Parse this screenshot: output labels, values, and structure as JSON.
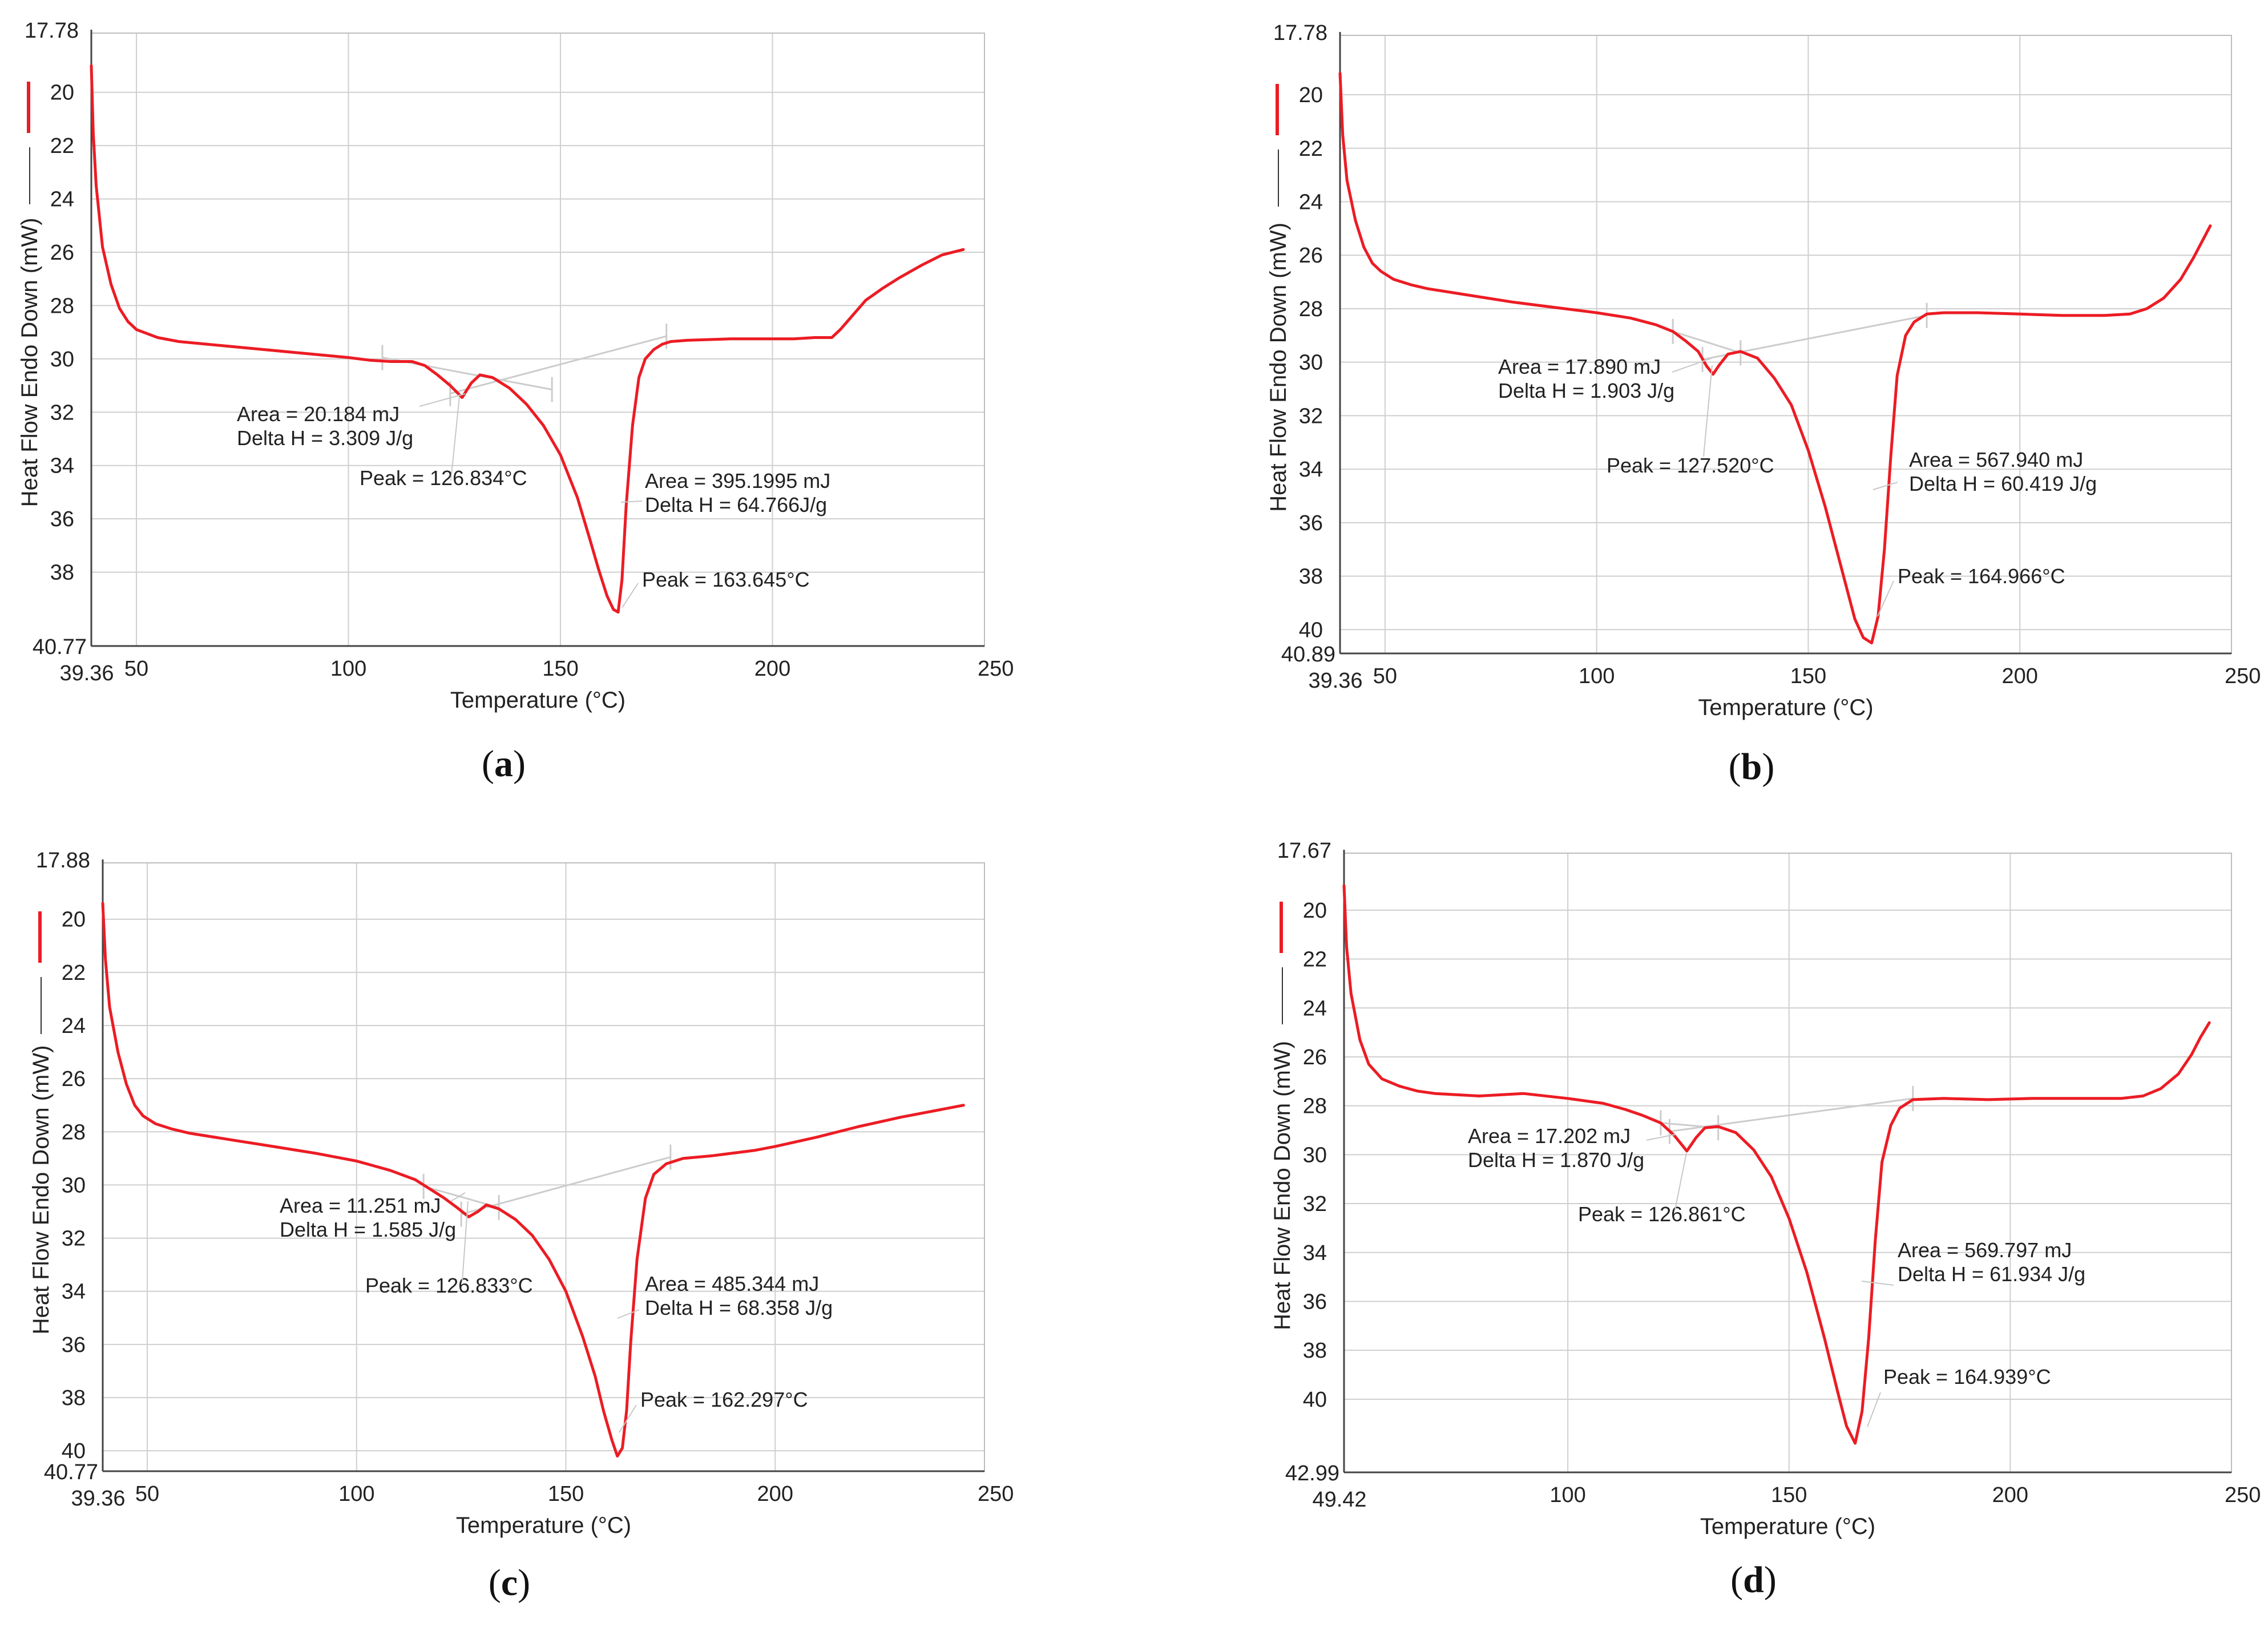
{
  "chart_data": [
    {
      "type": "line",
      "panel_label": "a",
      "xlabel": "Temperature (°C)",
      "ylabel": "Heat Flow Endo Down (mW)",
      "xlim": [
        39.36,
        250
      ],
      "ylim": [
        17.78,
        40.77
      ],
      "y_inverted": true,
      "x_start_label": "39.36",
      "y_top_label": "17.78",
      "y_bottom_label": "40.77",
      "xticks": [
        50,
        100,
        150,
        200,
        250
      ],
      "yticks": [
        20,
        22,
        24,
        26,
        28,
        30,
        32,
        34,
        36,
        38
      ],
      "series": [
        {
          "name": "Heat Flow",
          "color": "#ec1c24",
          "x": [
            39.36,
            39.8,
            40.5,
            42,
            44,
            46,
            48,
            50,
            55,
            60,
            70,
            80,
            90,
            100,
            105,
            110,
            115,
            118,
            121,
            124,
            126.8,
            129,
            131,
            134,
            138,
            142,
            146,
            150,
            154,
            157,
            159,
            161,
            162.5,
            163.6,
            164.5,
            165.5,
            167,
            168.5,
            170,
            172,
            174,
            176,
            180,
            190,
            200,
            205,
            210,
            214,
            216,
            219,
            222,
            226,
            230,
            235,
            240,
            245
          ],
          "y": [
            19.0,
            21.5,
            23.5,
            25.8,
            27.2,
            28.1,
            28.6,
            28.9,
            29.2,
            29.35,
            29.5,
            29.65,
            29.8,
            29.95,
            30.05,
            30.1,
            30.1,
            30.25,
            30.6,
            31.0,
            31.45,
            30.9,
            30.6,
            30.7,
            31.1,
            31.7,
            32.5,
            33.6,
            35.2,
            36.8,
            37.9,
            38.9,
            39.4,
            39.5,
            38.3,
            35.5,
            32.5,
            30.7,
            30.0,
            29.65,
            29.45,
            29.35,
            29.3,
            29.25,
            29.25,
            29.25,
            29.2,
            29.2,
            28.9,
            28.35,
            27.8,
            27.35,
            26.95,
            26.5,
            26.1,
            25.9
          ]
        }
      ],
      "annotations": [
        {
          "area": "Area =  20.184 mJ",
          "delta_h": "Delta H = 3.309 J/g",
          "peak": "Peak = 126.834°C"
        },
        {
          "area": "Area =  395.1995 mJ",
          "delta_h": "Delta H = 64.766J/g",
          "peak": "Peak = 163.645°C"
        }
      ],
      "baselines": [
        [
          [
            108,
            29.95
          ],
          [
            148,
            31.15
          ]
        ],
        [
          [
            124,
            31.3
          ],
          [
            175,
            29.15
          ]
        ]
      ]
    },
    {
      "type": "line",
      "panel_label": "b",
      "xlabel": "Temperature (°C)",
      "ylabel": "Heat Flow Endo Down (mW)",
      "xlim": [
        39.36,
        250
      ],
      "ylim": [
        17.78,
        40.89
      ],
      "y_inverted": true,
      "x_start_label": "39.36",
      "y_top_label": "17.78",
      "y_bottom_label": "40.89",
      "xticks": [
        50,
        100,
        150,
        200,
        250
      ],
      "yticks": [
        20,
        22,
        24,
        26,
        28,
        30,
        32,
        34,
        36,
        38,
        40
      ],
      "series": [
        {
          "name": "Heat Flow",
          "color": "#ec1c24",
          "x": [
            39.36,
            40,
            41,
            43,
            45,
            47,
            49,
            52,
            56,
            60,
            70,
            80,
            90,
            100,
            108,
            114,
            118,
            121,
            124,
            126,
            127.5,
            129,
            131,
            134,
            138,
            142,
            146,
            150,
            154,
            158,
            161,
            163,
            164.97,
            166.5,
            168,
            169.5,
            171,
            173,
            175,
            178,
            182,
            190,
            200,
            210,
            220,
            226,
            230,
            234,
            238,
            241,
            243,
            245
          ],
          "y": [
            19.2,
            21.5,
            23.2,
            24.7,
            25.7,
            26.3,
            26.6,
            26.9,
            27.1,
            27.25,
            27.5,
            27.75,
            27.95,
            28.15,
            28.35,
            28.6,
            28.85,
            29.2,
            29.6,
            30.15,
            30.45,
            30.1,
            29.7,
            29.6,
            29.85,
            30.6,
            31.6,
            33.3,
            35.4,
            37.8,
            39.6,
            40.3,
            40.5,
            39.5,
            37.0,
            33.5,
            30.5,
            29.0,
            28.5,
            28.2,
            28.15,
            28.15,
            28.2,
            28.25,
            28.25,
            28.2,
            28.0,
            27.6,
            26.9,
            26.1,
            25.5,
            24.9
          ]
        }
      ],
      "annotations": [
        {
          "area": "Area =  17.890 mJ",
          "delta_h": "Delta H = 1.903 J/g",
          "peak": "Peak = 127.520°C"
        },
        {
          "area": "Area =  567.940 mJ",
          "delta_h": "Delta H = 60.419 J/g",
          "peak": "Peak = 164.966°C"
        }
      ],
      "baselines": [
        [
          [
            118,
            28.85
          ],
          [
            134,
            29.65
          ]
        ],
        [
          [
            125,
            29.9
          ],
          [
            178,
            28.25
          ]
        ]
      ]
    },
    {
      "type": "line",
      "panel_label": "c",
      "xlabel": "Temperature (°C)",
      "ylabel": "Heat Flow Endo Down (mW)",
      "xlim": [
        39.36,
        250
      ],
      "ylim": [
        17.88,
        40.77
      ],
      "y_inverted": true,
      "x_start_label": "39.36",
      "y_top_label": "17.88",
      "y_bottom_label": "40.77",
      "xticks": [
        50,
        100,
        150,
        200,
        250
      ],
      "yticks": [
        20,
        22,
        24,
        26,
        28,
        30,
        32,
        34,
        36,
        38,
        40
      ],
      "series": [
        {
          "name": "Heat Flow",
          "color": "#ec1c24",
          "x": [
            39.36,
            40,
            41,
            43,
            45,
            47,
            49,
            52,
            56,
            60,
            70,
            80,
            90,
            100,
            108,
            114,
            118,
            121,
            124,
            126.8,
            129,
            131,
            134,
            138,
            142,
            146,
            150,
            154,
            157,
            159,
            161,
            162.3,
            163.5,
            164.5,
            165.5,
            167,
            169,
            171,
            174,
            178,
            185,
            195,
            200,
            210,
            220,
            230,
            240,
            245
          ],
          "y": [
            19.4,
            21.5,
            23.3,
            25.0,
            26.2,
            27.0,
            27.4,
            27.7,
            27.9,
            28.05,
            28.3,
            28.55,
            28.8,
            29.1,
            29.45,
            29.8,
            30.2,
            30.5,
            30.85,
            31.2,
            31.0,
            30.75,
            30.9,
            31.3,
            31.9,
            32.8,
            34.0,
            35.7,
            37.2,
            38.5,
            39.6,
            40.2,
            39.9,
            38.5,
            35.9,
            32.8,
            30.5,
            29.6,
            29.2,
            29.0,
            28.9,
            28.7,
            28.55,
            28.2,
            27.8,
            27.45,
            27.15,
            27.0
          ]
        }
      ],
      "annotations": [
        {
          "area": "Area =  11.251 mJ",
          "delta_h": "Delta H = 1.585 J/g",
          "peak": "Peak = 126.833°C"
        },
        {
          "area": "Area =  485.344 mJ",
          "delta_h": "Delta H = 68.358 J/g",
          "peak": "Peak = 162.297°C"
        }
      ],
      "baselines": [
        [
          [
            116,
            30.05
          ],
          [
            134,
            30.85
          ]
        ],
        [
          [
            125,
            31.1
          ],
          [
            175,
            28.95
          ]
        ]
      ]
    },
    {
      "type": "line",
      "panel_label": "d",
      "xlabel": "Temperature (°C)",
      "ylabel": "Heat Flow Endo Down (mW)",
      "xlim": [
        49.42,
        250
      ],
      "ylim": [
        17.67,
        42.99
      ],
      "y_inverted": true,
      "x_start_label": "49.42",
      "y_top_label": "17.67",
      "y_bottom_label": "42.99",
      "xticks": [
        100,
        150,
        200,
        250
      ],
      "yticks": [
        20,
        22,
        24,
        26,
        28,
        30,
        32,
        34,
        36,
        38,
        40
      ],
      "series": [
        {
          "name": "Heat Flow",
          "color": "#ec1c24",
          "x": [
            49.42,
            50,
            51,
            53,
            55,
            58,
            62,
            66,
            70,
            80,
            90,
            100,
            108,
            113,
            117,
            121,
            124,
            126.9,
            129,
            131,
            134,
            138,
            142,
            146,
            150,
            154,
            158,
            161,
            163,
            164.94,
            166.5,
            168,
            169.5,
            171,
            173,
            175,
            178,
            185,
            195,
            205,
            215,
            225,
            230,
            234,
            238,
            241,
            243,
            245
          ],
          "y": [
            19.0,
            21.5,
            23.4,
            25.3,
            26.3,
            26.9,
            27.2,
            27.4,
            27.5,
            27.6,
            27.5,
            27.7,
            27.9,
            28.15,
            28.4,
            28.7,
            29.2,
            29.85,
            29.3,
            28.9,
            28.85,
            29.1,
            29.8,
            30.9,
            32.6,
            34.8,
            37.5,
            39.7,
            41.1,
            41.8,
            40.5,
            37.5,
            33.5,
            30.3,
            28.8,
            28.1,
            27.75,
            27.7,
            27.75,
            27.7,
            27.7,
            27.7,
            27.6,
            27.3,
            26.7,
            25.9,
            25.2,
            24.6
          ]
        }
      ],
      "annotations": [
        {
          "area": "Area =  17.202 mJ",
          "delta_h": "Delta H = 1.870 J/g",
          "peak": "Peak = 126.861°C"
        },
        {
          "area": "Area =  569.797 mJ",
          "delta_h": "Delta H = 61.934 J/g",
          "peak": "Peak = 164.939°C"
        }
      ],
      "baselines": [
        [
          [
            121,
            28.7
          ],
          [
            134,
            28.9
          ]
        ],
        [
          [
            123,
            29.05
          ],
          [
            178,
            27.7
          ]
        ]
      ]
    }
  ]
}
